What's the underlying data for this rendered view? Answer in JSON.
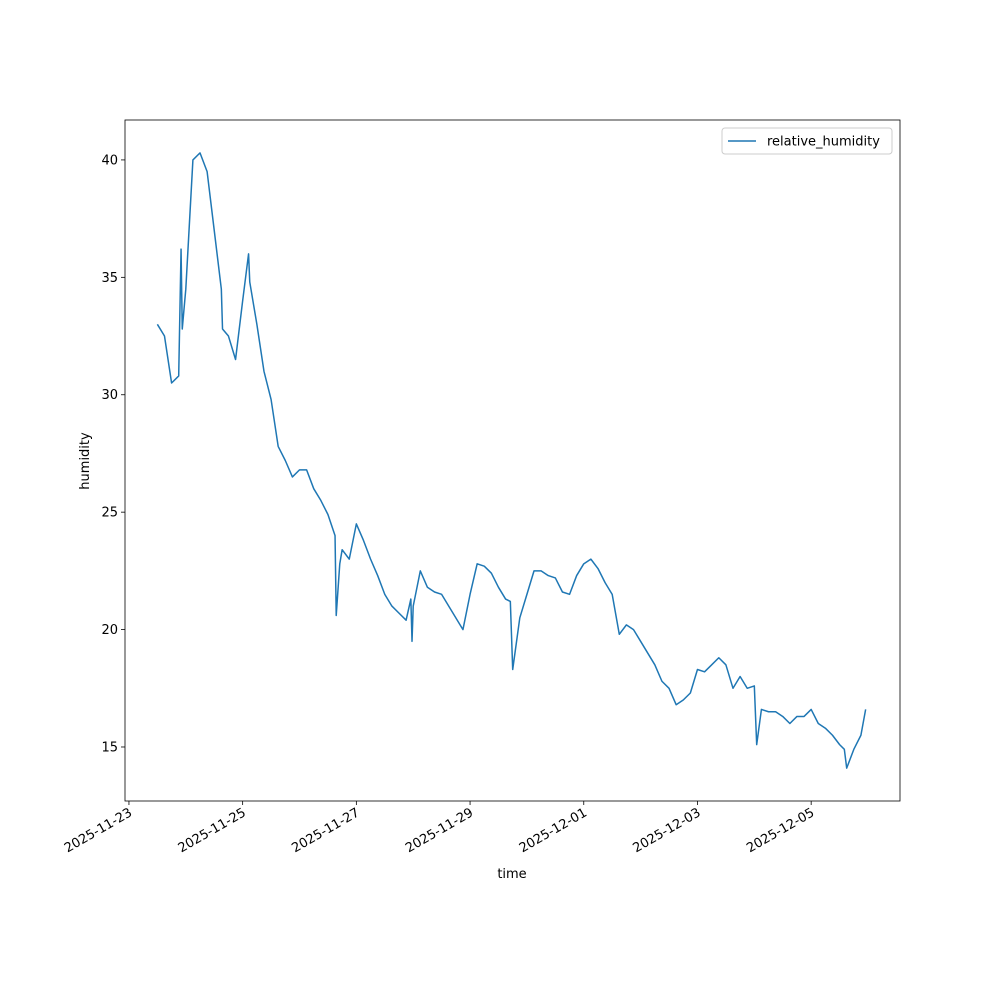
{
  "chart_data": {
    "type": "line",
    "xlabel": "time",
    "ylabel": "humidity",
    "x": [
      "2025-11-23T12:00",
      "2025-11-23T15:00",
      "2025-11-23T18:00",
      "2025-11-23T21:00",
      "2025-11-23T22:00",
      "2025-11-23T22:30",
      "2025-11-24T00:00",
      "2025-11-24T03:00",
      "2025-11-24T06:00",
      "2025-11-24T09:00",
      "2025-11-24T12:00",
      "2025-11-24T15:00",
      "2025-11-24T15:30",
      "2025-11-24T18:00",
      "2025-11-24T21:00",
      "2025-11-25T00:00",
      "2025-11-25T02:30",
      "2025-11-25T03:00",
      "2025-11-25T06:00",
      "2025-11-25T09:00",
      "2025-11-25T12:00",
      "2025-11-25T15:00",
      "2025-11-25T18:00",
      "2025-11-25T21:00",
      "2025-11-26T00:00",
      "2025-11-26T03:00",
      "2025-11-26T06:00",
      "2025-11-26T09:00",
      "2025-11-26T12:00",
      "2025-11-26T15:00",
      "2025-11-26T15:30",
      "2025-11-26T17:00",
      "2025-11-26T18:00",
      "2025-11-26T21:00",
      "2025-11-27T00:00",
      "2025-11-27T03:00",
      "2025-11-27T06:00",
      "2025-11-27T09:00",
      "2025-11-27T12:00",
      "2025-11-27T15:00",
      "2025-11-27T18:00",
      "2025-11-27T21:00",
      "2025-11-27T23:00",
      "2025-11-27T23:30",
      "2025-11-28T00:00",
      "2025-11-28T03:00",
      "2025-11-28T06:00",
      "2025-11-28T09:00",
      "2025-11-28T12:00",
      "2025-11-28T15:00",
      "2025-11-28T18:00",
      "2025-11-28T21:00",
      "2025-11-29T00:00",
      "2025-11-29T03:00",
      "2025-11-29T06:00",
      "2025-11-29T09:00",
      "2025-11-29T12:00",
      "2025-11-29T15:00",
      "2025-11-29T17:00",
      "2025-11-29T18:00",
      "2025-11-29T21:00",
      "2025-11-30T00:00",
      "2025-11-30T03:00",
      "2025-11-30T06:00",
      "2025-11-30T09:00",
      "2025-11-30T12:00",
      "2025-11-30T15:00",
      "2025-11-30T18:00",
      "2025-11-30T21:00",
      "2025-12-01T00:00",
      "2025-12-01T03:00",
      "2025-12-01T06:00",
      "2025-12-01T09:00",
      "2025-12-01T12:00",
      "2025-12-01T15:00",
      "2025-12-01T18:00",
      "2025-12-01T21:00",
      "2025-12-02T00:00",
      "2025-12-02T03:00",
      "2025-12-02T06:00",
      "2025-12-02T09:00",
      "2025-12-02T12:00",
      "2025-12-02T15:00",
      "2025-12-02T18:00",
      "2025-12-02T21:00",
      "2025-12-03T00:00",
      "2025-12-03T03:00",
      "2025-12-03T06:00",
      "2025-12-03T09:00",
      "2025-12-03T12:00",
      "2025-12-03T15:00",
      "2025-12-03T18:00",
      "2025-12-03T21:00",
      "2025-12-04T00:00",
      "2025-12-04T01:00",
      "2025-12-04T03:00",
      "2025-12-04T06:00",
      "2025-12-04T09:00",
      "2025-12-04T12:00",
      "2025-12-04T15:00",
      "2025-12-04T18:00",
      "2025-12-04T21:00",
      "2025-12-05T00:00",
      "2025-12-05T03:00",
      "2025-12-05T06:00",
      "2025-12-05T09:00",
      "2025-12-05T12:00",
      "2025-12-05T14:00",
      "2025-12-05T15:00",
      "2025-12-05T18:00",
      "2025-12-05T21:00",
      "2025-12-05T23:00"
    ],
    "series": [
      {
        "name": "relative_humidity",
        "color": "#1f77b4",
        "values": [
          33.0,
          32.5,
          30.5,
          30.8,
          36.2,
          32.8,
          34.5,
          40.0,
          40.3,
          39.5,
          37.0,
          34.5,
          32.8,
          32.5,
          31.5,
          34.0,
          36.0,
          34.8,
          33.0,
          31.0,
          29.8,
          27.8,
          27.2,
          26.5,
          26.8,
          26.8,
          26.0,
          25.5,
          24.9,
          24.0,
          20.6,
          22.8,
          23.4,
          23.0,
          24.5,
          23.8,
          23.0,
          22.3,
          21.5,
          21.0,
          20.7,
          20.4,
          21.3,
          19.5,
          21.0,
          22.5,
          21.8,
          21.6,
          21.5,
          21.0,
          20.5,
          20.0,
          21.5,
          22.8,
          22.7,
          22.4,
          21.8,
          21.3,
          21.2,
          18.3,
          20.5,
          21.5,
          22.5,
          22.5,
          22.3,
          22.2,
          21.6,
          21.5,
          22.3,
          22.8,
          23.0,
          22.6,
          22.0,
          21.5,
          19.8,
          20.2,
          20.0,
          19.5,
          19.0,
          18.5,
          17.8,
          17.5,
          16.8,
          17.0,
          17.3,
          18.3,
          18.2,
          18.5,
          18.8,
          18.5,
          17.5,
          18.0,
          17.5,
          17.6,
          15.1,
          16.6,
          16.5,
          16.5,
          16.3,
          16.0,
          16.3,
          16.3,
          16.6,
          16.0,
          15.8,
          15.5,
          15.1,
          14.9,
          14.1,
          14.9,
          15.5,
          16.6
        ]
      }
    ],
    "xlim": [
      "2025-11-22T22:20",
      "2025-12-06T13:30"
    ],
    "xticks": [
      "2025-11-23",
      "2025-11-25",
      "2025-11-27",
      "2025-11-29",
      "2025-12-01",
      "2025-12-03",
      "2025-12-05"
    ],
    "ylim": [
      12.7,
      41.7
    ],
    "yticks": [
      15,
      20,
      25,
      30,
      35,
      40
    ],
    "legend": "upper right",
    "grid": false
  }
}
